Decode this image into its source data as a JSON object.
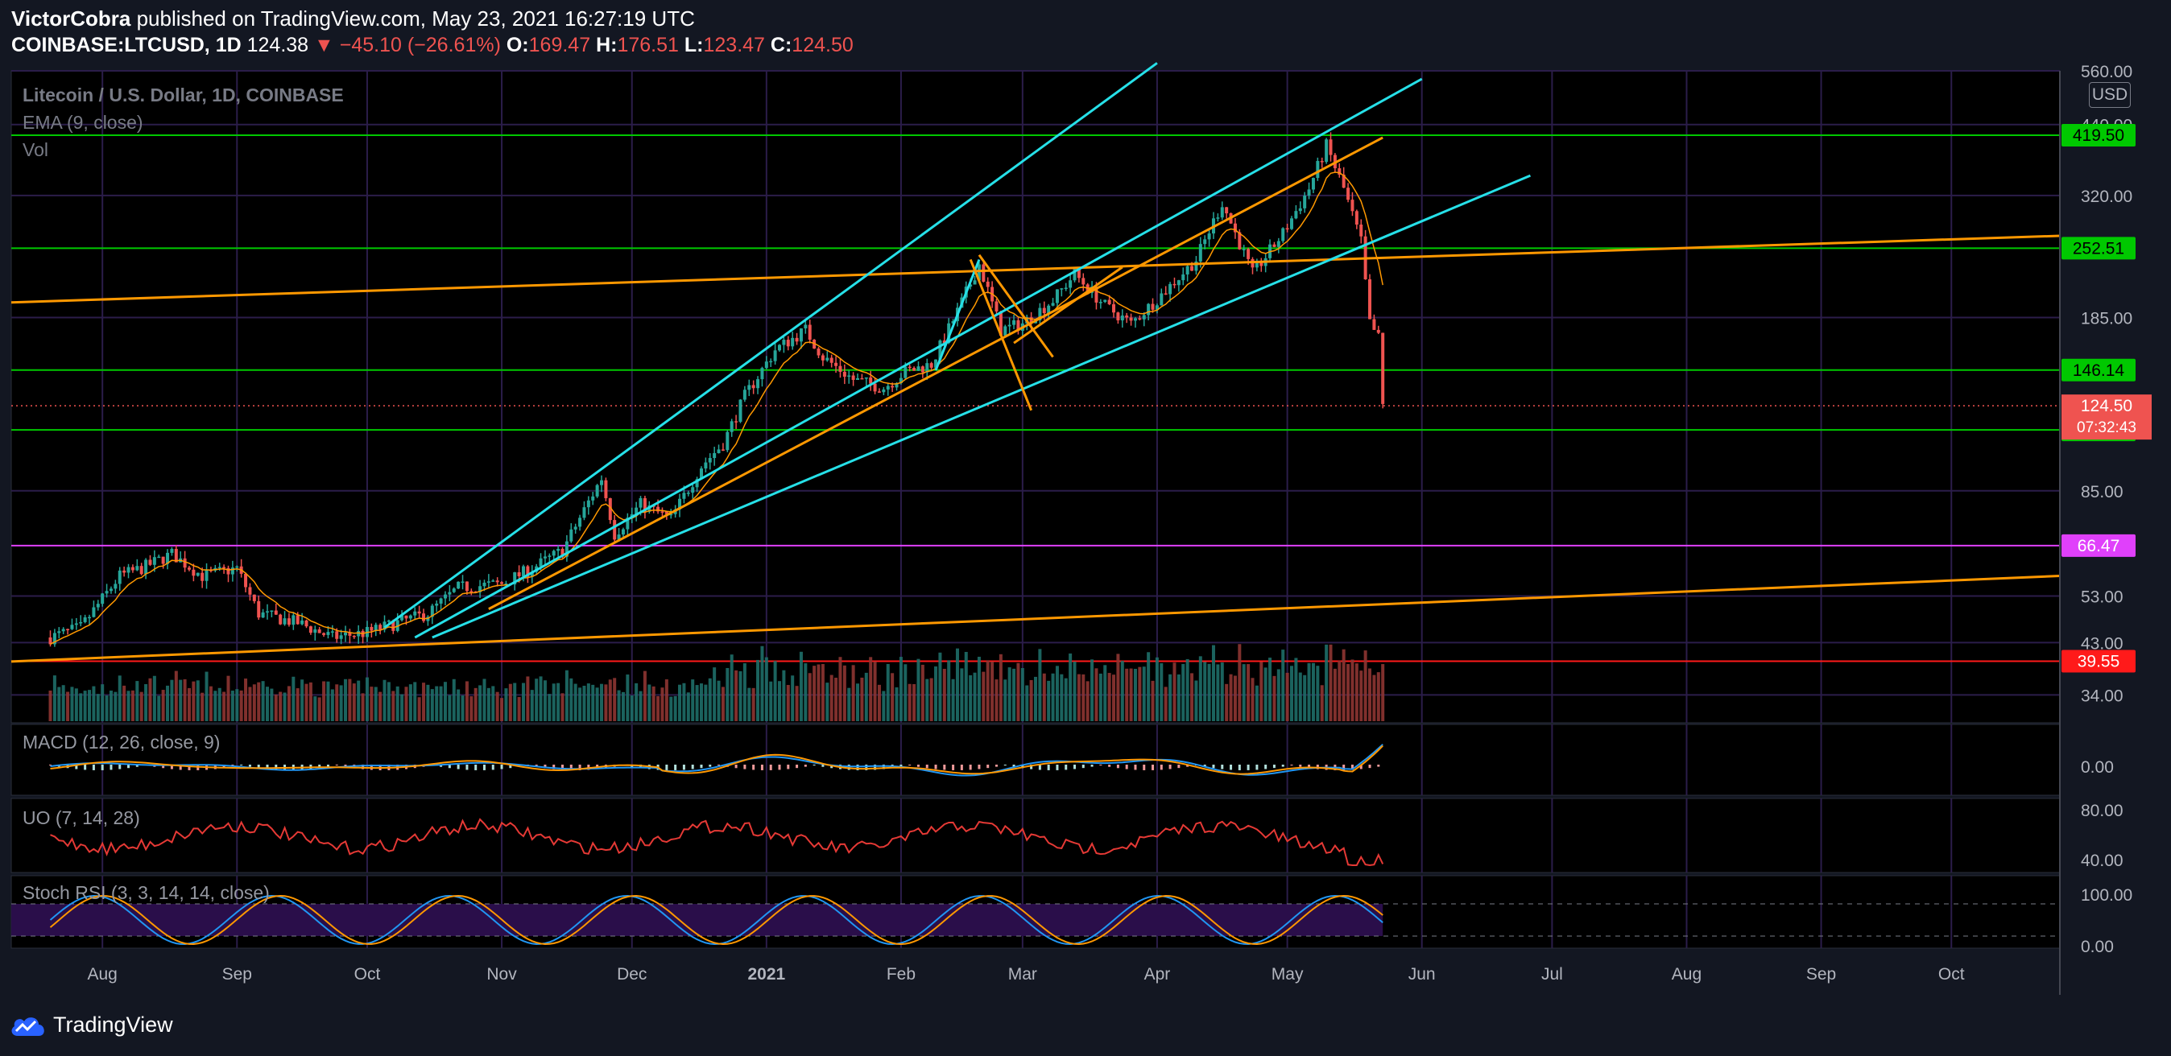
{
  "header": {
    "author": "VictorCobra",
    "published_text": "published on TradingView.com, May 23, 2021 16:27:19 UTC",
    "symbol": "COINBASE:LTCUSD, 1D",
    "last": "124.38",
    "arrow": "▼",
    "change": "−45.10 (−26.61%)",
    "open_label": "O:",
    "open": "169.47",
    "high_label": "H:",
    "high": "176.51",
    "low_label": "L:",
    "low": "123.47",
    "close_label": "C:",
    "close": "124.50"
  },
  "legend": {
    "title": "Litecoin / U.S. Dollar, 1D, COINBASE",
    "ema": "EMA (9, close)",
    "vol": "Vol"
  },
  "currency_button": "USD",
  "footer": {
    "brand": "TradingView"
  },
  "colors": {
    "background": "#000000",
    "up": "#26a69a",
    "down": "#ef5350",
    "level_green": "#00c800",
    "level_magenta": "#e040fb",
    "trend_orange": "#ff9800",
    "trend_cyan": "#26e0e8",
    "ema": "#ff9800"
  },
  "chart_data": {
    "type": "candlestick",
    "title": "Litecoin / U.S. Dollar, 1D, COINBASE",
    "y_scale": "log",
    "ylim": [
      30,
      560
    ],
    "y_ticks": [
      "560.00",
      "440.00",
      "320.00",
      "185.00",
      "85.00",
      "53.00",
      "43.00",
      "34.00"
    ],
    "x_ticks": [
      "Aug",
      "Sep",
      "Oct",
      "Nov",
      "Dec",
      "2021",
      "Feb",
      "Mar",
      "Apr",
      "May",
      "Jun",
      "Jul",
      "Aug",
      "Sep",
      "Oct"
    ],
    "price_levels": [
      {
        "label": "419.50",
        "value": 419.5,
        "color": "#00c800"
      },
      {
        "label": "252.51",
        "value": 252.51,
        "color": "#00c800"
      },
      {
        "label": "146.14",
        "value": 146.14,
        "color": "#00c800"
      },
      {
        "label": "111.71",
        "value": 111.71,
        "color": "#00c800"
      },
      {
        "label": "66.47",
        "value": 66.47,
        "color": "#e040fb"
      },
      {
        "label": "39.55",
        "value": 39.55,
        "color": "#ff1a1a"
      }
    ],
    "last_price": {
      "label": "124.50",
      "countdown": "07:32:43",
      "value": 124.5
    },
    "price_path": [
      [
        "2020-07-20",
        44
      ],
      [
        "2020-07-27",
        46
      ],
      [
        "2020-08-05",
        58
      ],
      [
        "2020-08-10",
        60
      ],
      [
        "2020-08-17",
        64
      ],
      [
        "2020-08-24",
        58
      ],
      [
        "2020-09-01",
        60
      ],
      [
        "2020-09-06",
        49
      ],
      [
        "2020-09-15",
        47
      ],
      [
        "2020-09-23",
        44
      ],
      [
        "2020-10-01",
        45
      ],
      [
        "2020-10-08",
        47
      ],
      [
        "2020-10-15",
        49
      ],
      [
        "2020-10-22",
        55
      ],
      [
        "2020-11-01",
        56
      ],
      [
        "2020-11-08",
        60
      ],
      [
        "2020-11-15",
        65
      ],
      [
        "2020-11-20",
        78
      ],
      [
        "2020-11-24",
        90
      ],
      [
        "2020-11-27",
        70
      ],
      [
        "2020-12-03",
        80
      ],
      [
        "2020-12-10",
        75
      ],
      [
        "2020-12-17",
        95
      ],
      [
        "2020-12-22",
        105
      ],
      [
        "2020-12-27",
        130
      ],
      [
        "2021-01-03",
        160
      ],
      [
        "2021-01-10",
        175
      ],
      [
        "2021-01-14",
        155
      ],
      [
        "2021-01-21",
        140
      ],
      [
        "2021-01-28",
        135
      ],
      [
        "2021-02-02",
        145
      ],
      [
        "2021-02-08",
        150
      ],
      [
        "2021-02-14",
        190
      ],
      [
        "2021-02-19",
        235
      ],
      [
        "2021-02-24",
        175
      ],
      [
        "2021-03-01",
        180
      ],
      [
        "2021-03-08",
        200
      ],
      [
        "2021-03-13",
        225
      ],
      [
        "2021-03-20",
        195
      ],
      [
        "2021-03-26",
        180
      ],
      [
        "2021-04-02",
        205
      ],
      [
        "2021-04-10",
        240
      ],
      [
        "2021-04-16",
        310
      ],
      [
        "2021-04-23",
        225
      ],
      [
        "2021-04-30",
        270
      ],
      [
        "2021-05-06",
        330
      ],
      [
        "2021-05-10",
        400
      ],
      [
        "2021-05-14",
        330
      ],
      [
        "2021-05-18",
        260
      ],
      [
        "2021-05-20",
        180
      ],
      [
        "2021-05-22",
        169
      ],
      [
        "2021-05-23",
        124.5
      ]
    ],
    "indicators": [
      {
        "name": "MACD (12, 26, close, 9)",
        "y_ticks": [
          "0.00"
        ]
      },
      {
        "name": "UO (7, 14, 28)",
        "y_ticks": [
          "80.00",
          "40.00"
        ]
      },
      {
        "name": "Stoch RSI (3, 3, 14, 14, close)",
        "y_ticks": [
          "100.00",
          "0.00"
        ]
      }
    ]
  }
}
